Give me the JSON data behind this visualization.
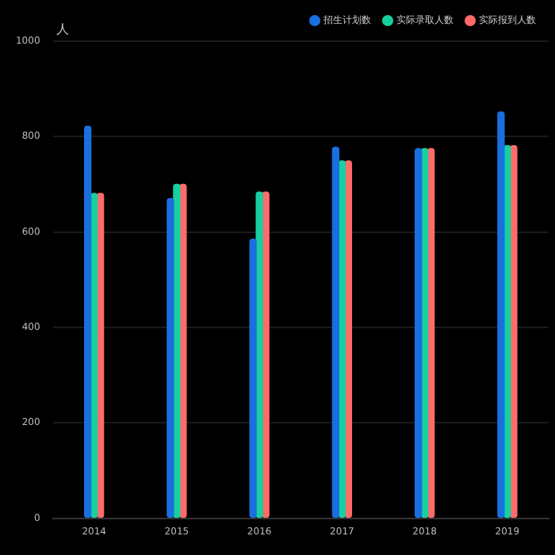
{
  "chart_data": {
    "type": "bar",
    "ylabel": "人",
    "categories": [
      "2014",
      "2015",
      "2016",
      "2017",
      "2018",
      "2019"
    ],
    "series": [
      {
        "name": "招生计划数",
        "color": "#1a6fe0",
        "values": [
          822,
          670,
          585,
          778,
          775,
          852
        ]
      },
      {
        "name": "实际录取人数",
        "color": "#17d0a0",
        "values": [
          681,
          700,
          684,
          749,
          775,
          781
        ]
      },
      {
        "name": "实际报到人数",
        "color": "#ff6b6b",
        "values": [
          681,
          700,
          684,
          749,
          775,
          781
        ]
      }
    ],
    "ylim": [
      0,
      1000
    ],
    "yticks": [
      0,
      200,
      400,
      600,
      800,
      1000
    ],
    "grid": "y",
    "legend": "top right"
  }
}
